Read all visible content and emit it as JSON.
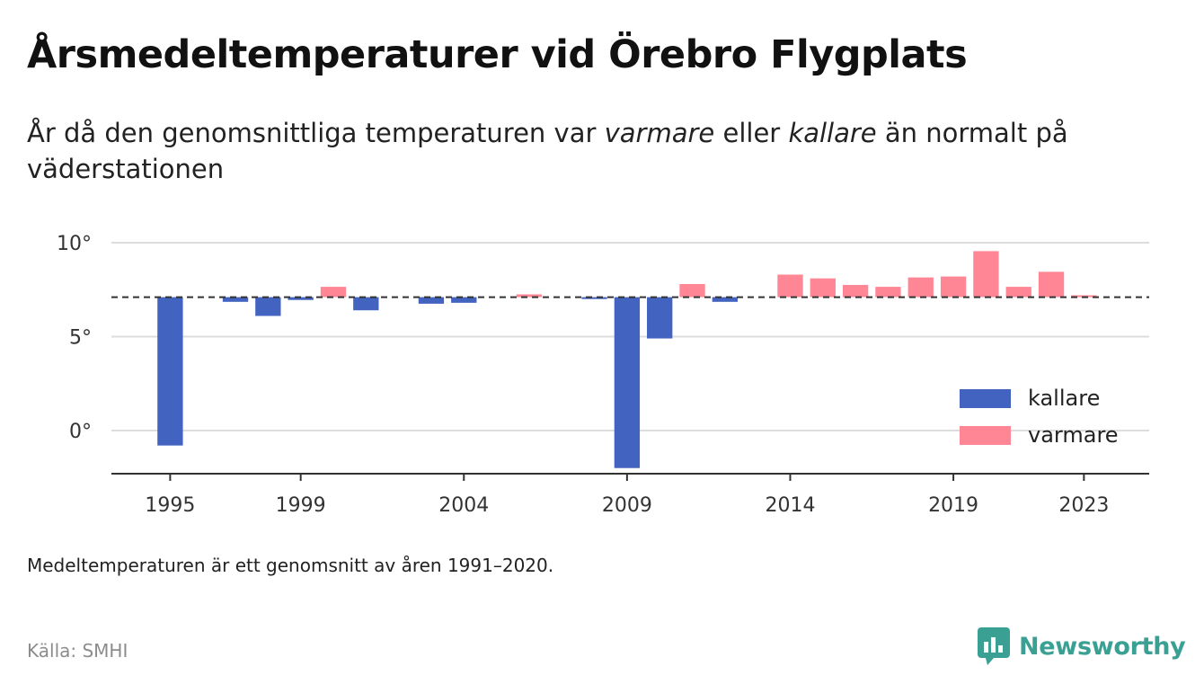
{
  "header": {
    "title": "Årsmedeltemperaturer vid Örebro Flygplats",
    "subtitle_part1": "År då den genomsnittliga temperaturen var ",
    "subtitle_em1": "varmare",
    "subtitle_part2": " eller ",
    "subtitle_em2": "kallare",
    "subtitle_part3": " än normalt på väderstationen"
  },
  "footer": {
    "note": "Medeltemperaturen är ett genomsnitt av åren 1991–2020.",
    "source": "Källa: SMHI",
    "brand": "Newsworthy"
  },
  "colors": {
    "kallare": "#4363c0",
    "varmare": "#ff8795",
    "brand": "#3aa093",
    "grid": "#dddddd",
    "reference_line": "#333333"
  },
  "legend": {
    "kallare": "kallare",
    "varmare": "varmare"
  },
  "chart_data": {
    "type": "bar",
    "baseline": 7.1,
    "ylim": [
      -2.3,
      10
    ],
    "xlim": [
      1993.2,
      2025
    ],
    "grid": true,
    "legend_position": "bottom-right",
    "y_ticks": [
      0,
      5,
      10
    ],
    "y_tick_labels": [
      "0°",
      "5°",
      "10°"
    ],
    "x_ticks": [
      1995,
      1999,
      2004,
      2009,
      2014,
      2019,
      2023
    ],
    "x_tick_labels": [
      "1995",
      "1999",
      "2004",
      "2009",
      "2014",
      "2019",
      "2023"
    ],
    "years": [
      1995,
      1996,
      1997,
      1998,
      1999,
      2000,
      2001,
      2002,
      2003,
      2004,
      2005,
      2006,
      2007,
      2008,
      2009,
      2010,
      2011,
      2012,
      2013,
      2014,
      2015,
      2016,
      2017,
      2018,
      2019,
      2020,
      2021,
      2022,
      2023
    ],
    "values": [
      -0.8,
      null,
      6.85,
      6.1,
      6.95,
      7.65,
      6.4,
      null,
      6.75,
      6.8,
      null,
      7.25,
      null,
      7.0,
      -2.0,
      4.9,
      7.8,
      6.85,
      null,
      8.3,
      8.1,
      7.75,
      7.65,
      8.15,
      8.2,
      9.55,
      7.65,
      8.45,
      7.2
    ],
    "series": [
      {
        "name": "kallare",
        "color": "#4363c0"
      },
      {
        "name": "varmare",
        "color": "#ff8795"
      }
    ]
  }
}
